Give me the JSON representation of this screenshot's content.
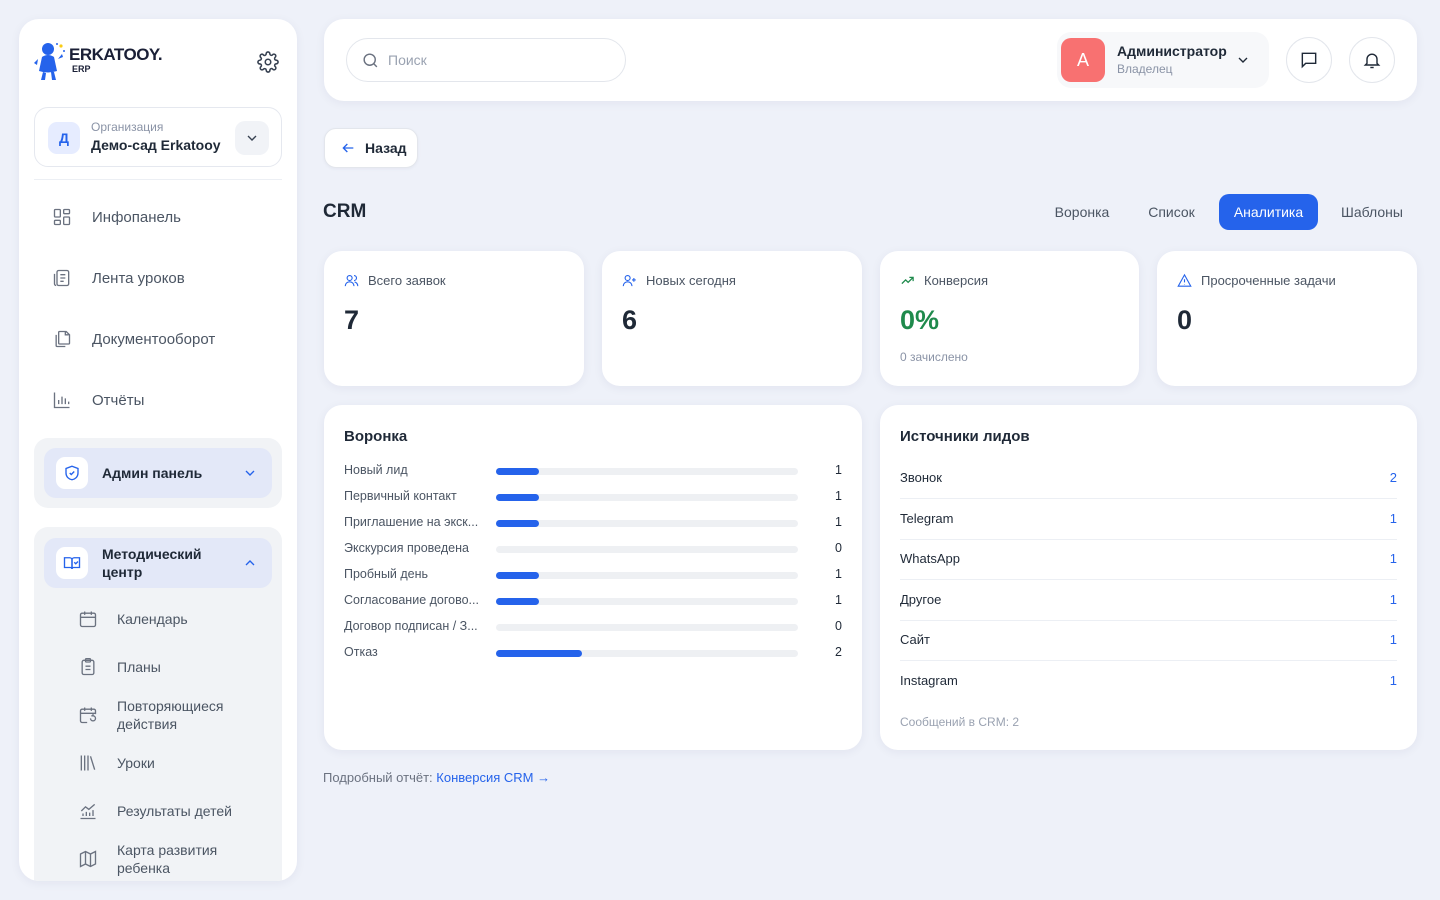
{
  "sidebar": {
    "logo_name": "ERKATOOY.",
    "logo_sub": "ERP",
    "org": {
      "avatar": "Д",
      "label": "Организация",
      "name": "Демо-сад Erkatooy"
    },
    "nav": [
      {
        "label": "Инфопанель",
        "icon": "dashboard-icon"
      },
      {
        "label": "Лента уроков",
        "icon": "lessons-feed-icon"
      },
      {
        "label": "Документооборот",
        "icon": "documents-icon"
      },
      {
        "label": "Отчёты",
        "icon": "reports-icon"
      }
    ],
    "admin_label": "Админ панель",
    "metod_label": "Методический центр",
    "metod_items": [
      {
        "label": "Календарь",
        "icon": "calendar-icon"
      },
      {
        "label": "Планы",
        "icon": "clipboard-icon"
      },
      {
        "label": "Повторяющиеся действия",
        "icon": "calendar-repeat-icon"
      },
      {
        "label": "Уроки",
        "icon": "books-icon"
      },
      {
        "label": "Результаты детей",
        "icon": "chart-growth-icon"
      },
      {
        "label": "Карта развития ребенка",
        "icon": "map-icon"
      }
    ]
  },
  "topbar": {
    "search_placeholder": "Поиск",
    "user": {
      "avatar": "А",
      "name": "Администратор",
      "role": "Владелец"
    }
  },
  "back_label": "Назад",
  "page_title": "CRM",
  "tabs": [
    {
      "label": "Воронка",
      "active": false
    },
    {
      "label": "Список",
      "active": false
    },
    {
      "label": "Аналитика",
      "active": true
    },
    {
      "label": "Шаблоны",
      "active": false
    }
  ],
  "stats": [
    {
      "label": "Всего заявок",
      "value": "7",
      "sub": "",
      "icon": "users-icon"
    },
    {
      "label": "Новых сегодня",
      "value": "6",
      "sub": "",
      "icon": "user-plus-icon"
    },
    {
      "label": "Конверсия",
      "value": "0%",
      "sub": "0 зачислено",
      "icon": "trending-up-icon",
      "value_color": "#1f8a4c"
    },
    {
      "label": "Просроченные задачи",
      "value": "0",
      "sub": "",
      "icon": "warning-icon"
    }
  ],
  "funnel": {
    "title": "Воронка",
    "max": 7,
    "rows": [
      {
        "label": "Новый лид",
        "value": 1
      },
      {
        "label": "Первичный контакт",
        "value": 1
      },
      {
        "label": "Приглашение на экск...",
        "value": 1
      },
      {
        "label": "Экскурсия проведена",
        "value": 0
      },
      {
        "label": "Пробный день",
        "value": 1
      },
      {
        "label": "Согласование догово...",
        "value": 1
      },
      {
        "label": "Договор подписан / З...",
        "value": 0
      },
      {
        "label": "Отказ",
        "value": 2
      }
    ]
  },
  "sources": {
    "title": "Источники лидов",
    "rows": [
      {
        "name": "Звонок",
        "count": "2"
      },
      {
        "name": "Telegram",
        "count": "1"
      },
      {
        "name": "WhatsApp",
        "count": "1"
      },
      {
        "name": "Другое",
        "count": "1"
      },
      {
        "name": "Сайт",
        "count": "1"
      },
      {
        "name": "Instagram",
        "count": "1"
      }
    ],
    "messages": "Сообщений в CRM: 2"
  },
  "report": {
    "prefix": "Подробный отчёт:",
    "link": "Конверсия CRM →"
  },
  "colors": {
    "accent": "#2563eb",
    "success": "#1f8a4c",
    "avatar": "#f87171"
  }
}
